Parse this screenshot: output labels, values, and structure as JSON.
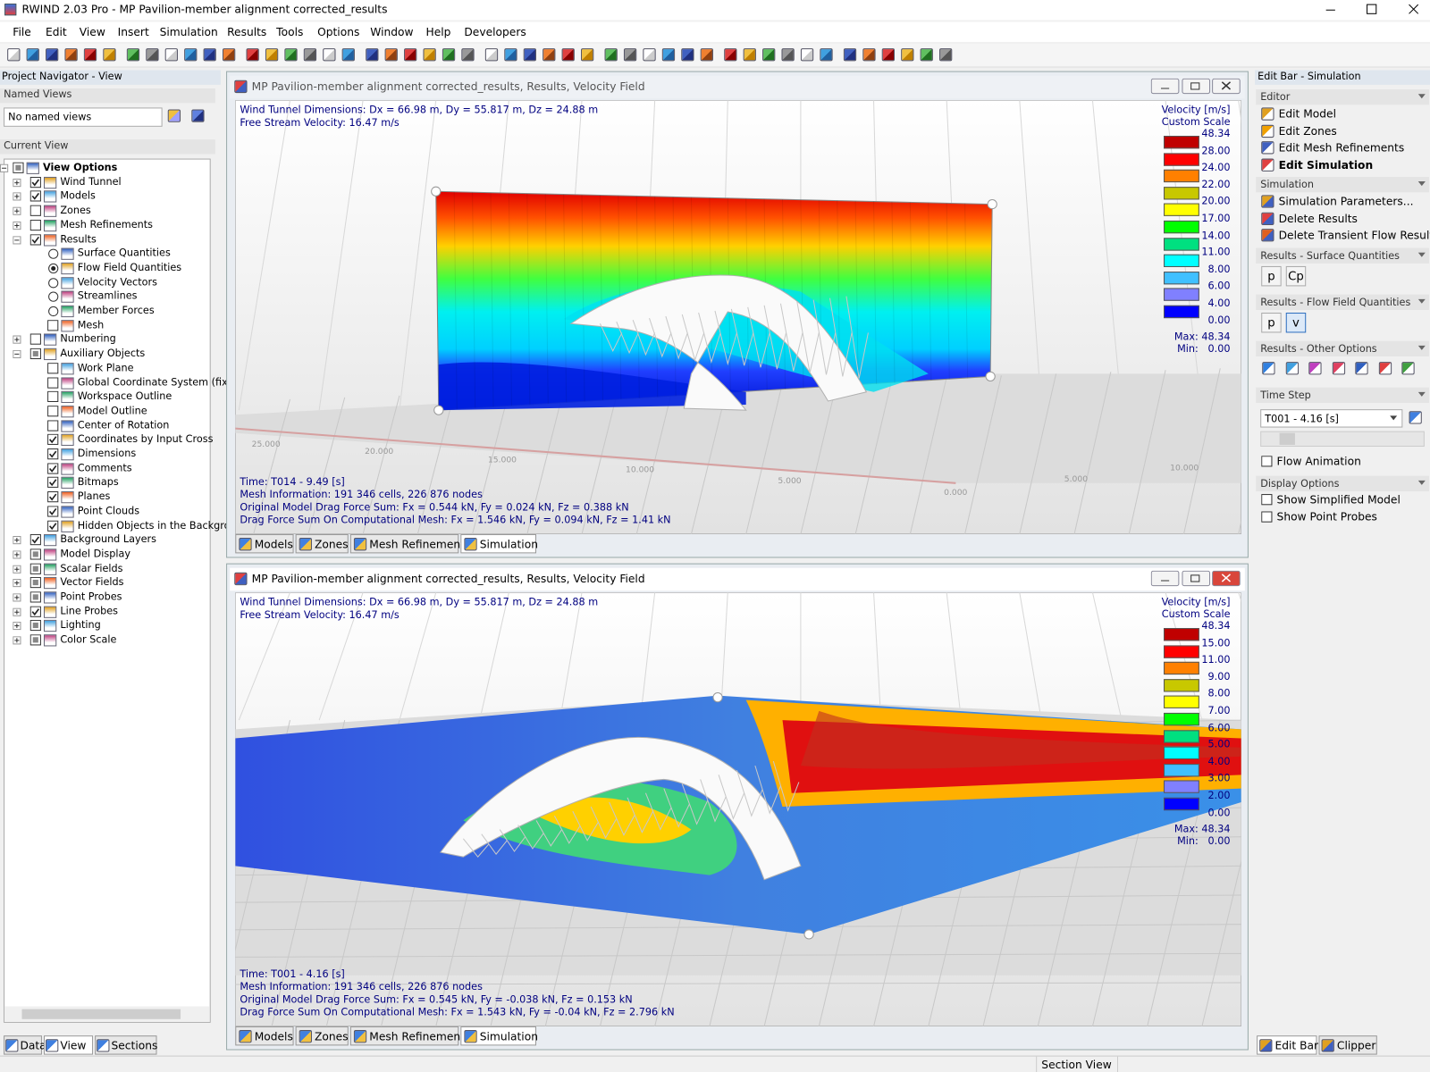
{
  "title_bar": {
    "title": "RWIND 2.03 Pro - MP Pavilion-member alignment corrected_results"
  },
  "menu": [
    "File",
    "Edit",
    "View",
    "Insert",
    "Simulation",
    "Results",
    "Tools",
    "Options",
    "Window",
    "Help",
    "Developers"
  ],
  "navigator": {
    "title": "Project Navigator - View",
    "named_views_label": "Named Views",
    "named_views_value": "No named views",
    "current_view_label": "Current View",
    "tree": [
      {
        "label": "View Options",
        "state": "partial",
        "children": [
          {
            "label": "Wind Tunnel",
            "state": "checked"
          },
          {
            "label": "Models",
            "state": "checked"
          },
          {
            "label": "Zones",
            "state": "unchecked"
          },
          {
            "label": "Mesh Refinements",
            "state": "unchecked"
          },
          {
            "label": "Results",
            "state": "checked",
            "children": [
              {
                "label": "Surface Quantities",
                "state": "radio"
              },
              {
                "label": "Flow Field Quantities",
                "state": "radio-on"
              },
              {
                "label": "Velocity Vectors",
                "state": "radio"
              },
              {
                "label": "Streamlines",
                "state": "radio"
              },
              {
                "label": "Member Forces",
                "state": "radio"
              },
              {
                "label": "Mesh",
                "state": "unchecked"
              }
            ]
          },
          {
            "label": "Numbering",
            "state": "unchecked"
          },
          {
            "label": "Auxiliary Objects",
            "state": "partial",
            "children": [
              {
                "label": "Work Plane",
                "state": "unchecked"
              },
              {
                "label": "Global Coordinate System (fixe",
                "state": "unchecked"
              },
              {
                "label": "Workspace Outline",
                "state": "unchecked"
              },
              {
                "label": "Model Outline",
                "state": "unchecked"
              },
              {
                "label": "Center of Rotation",
                "state": "unchecked"
              },
              {
                "label": "Coordinates by Input Cross",
                "state": "checked"
              },
              {
                "label": "Dimensions",
                "state": "checked"
              },
              {
                "label": "Comments",
                "state": "checked"
              },
              {
                "label": "Bitmaps",
                "state": "checked"
              },
              {
                "label": "Planes",
                "state": "checked"
              },
              {
                "label": "Point Clouds",
                "state": "checked"
              },
              {
                "label": "Hidden Objects in the Backgrou",
                "state": "checked"
              }
            ]
          },
          {
            "label": "Background Layers",
            "state": "checked"
          },
          {
            "label": "Model Display",
            "state": "partial"
          },
          {
            "label": "Scalar Fields",
            "state": "partial"
          },
          {
            "label": "Vector Fields",
            "state": "partial"
          },
          {
            "label": "Point Probes",
            "state": "partial"
          },
          {
            "label": "Line Probes",
            "state": "checked"
          },
          {
            "label": "Lighting",
            "state": "partial"
          },
          {
            "label": "Color Scale",
            "state": "partial"
          }
        ]
      }
    ],
    "tabs": [
      "Data",
      "View",
      "Sections"
    ]
  },
  "windows": [
    {
      "title": "MP Pavilion-member alignment corrected_results, Results, Velocity Field",
      "info": [
        "Wind Tunnel Dimensions: Dx = 66.98 m, Dy = 55.817 m, Dz = 24.88 m",
        "Free Stream Velocity: 16.47 m/s"
      ],
      "legend_title": "Velocity [m/s]",
      "legend_subtitle": "Custom Scale",
      "scale_labels": [
        "48.34",
        "28.00",
        "24.00",
        "22.00",
        "20.00",
        "17.00",
        "14.00",
        "11.00",
        "8.00",
        "6.00",
        "4.00",
        "0.00"
      ],
      "scale_colors": [
        "#c00000",
        "#ff0000",
        "#ff8000",
        "#c8c800",
        "#ffff00",
        "#00ff00",
        "#00e080",
        "#00ffff",
        "#40c0ff",
        "#8080ff",
        "#0000ff"
      ],
      "max_label": "Max:",
      "max_value": "48.34",
      "min_label": "Min:",
      "min_value": "0.00",
      "footer": [
        "Time: T014 - 9.49 [s]",
        "Mesh Information: 191 346 cells, 226 876 nodes",
        "Original Model Drag Force Sum: Fx = 0.544 kN, Fy = 0.024 kN, Fz = 0.388 kN",
        "Drag Force Sum On Computational Mesh: Fx = 1.546 kN, Fy = 0.094 kN, Fz = 1.41 kN"
      ],
      "axis_labels": [
        "25.000",
        "20.000",
        "15.000",
        "10.000",
        "5.000",
        "0.000",
        "5.000",
        "10.000"
      ],
      "tabs": [
        "Models",
        "Zones",
        "Mesh Refinements",
        "Simulation"
      ]
    },
    {
      "title": "MP Pavilion-member alignment corrected_results, Results, Velocity Field",
      "info": [
        "Wind Tunnel Dimensions: Dx = 66.98 m, Dy = 55.817 m, Dz = 24.88 m",
        "Free Stream Velocity: 16.47 m/s"
      ],
      "legend_title": "Velocity [m/s]",
      "legend_subtitle": "Custom Scale",
      "scale_labels": [
        "48.34",
        "15.00",
        "11.00",
        "9.00",
        "8.00",
        "7.00",
        "6.00",
        "5.00",
        "4.00",
        "3.00",
        "2.00",
        "0.00"
      ],
      "scale_colors": [
        "#c00000",
        "#ff0000",
        "#ff8000",
        "#c8c800",
        "#ffff00",
        "#00ff00",
        "#00e080",
        "#00ffff",
        "#40c0ff",
        "#8080ff",
        "#0000ff"
      ],
      "max_label": "Max:",
      "max_value": "48.34",
      "min_label": "Min:",
      "min_value": "0.00",
      "footer": [
        "Time: T001 - 4.16 [s]",
        "Mesh Information: 191 346 cells, 226 876 nodes",
        "Original Model Drag Force Sum: Fx = 0.545 kN, Fy = -0.038 kN, Fz = 0.153 kN",
        "Drag Force Sum On Computational Mesh: Fx = 1.543 kN, Fy = -0.04 kN, Fz = 2.796 kN"
      ],
      "tabs": [
        "Models",
        "Zones",
        "Mesh Refinements",
        "Simulation"
      ]
    }
  ],
  "edit_bar": {
    "title": "Edit Bar - Simulation",
    "editor": {
      "header": "Editor",
      "items": [
        "Edit Model",
        "Edit Zones",
        "Edit Mesh Refinements",
        "Edit Simulation"
      ]
    },
    "simulation": {
      "header": "Simulation",
      "items": [
        "Simulation Parameters...",
        "Delete Results",
        "Delete Transient Flow Results..."
      ]
    },
    "surface_quantities": {
      "header": "Results - Surface Quantities",
      "buttons": [
        "p",
        "Cp"
      ]
    },
    "flow_field_quantities": {
      "header": "Results - Flow Field Quantities",
      "buttons": [
        "p",
        "v"
      ]
    },
    "other_options": {
      "header": "Results - Other Options"
    },
    "time_step": {
      "header": "Time Step",
      "value": "T001 - 4.16 [s]",
      "flow_animation": "Flow Animation"
    },
    "display_options": {
      "header": "Display Options",
      "items": [
        "Show Simplified Model",
        "Show Point Probes"
      ]
    },
    "tabs": [
      "Edit Bar",
      "Clipper"
    ]
  },
  "status_bar": {
    "text": "Section View"
  }
}
